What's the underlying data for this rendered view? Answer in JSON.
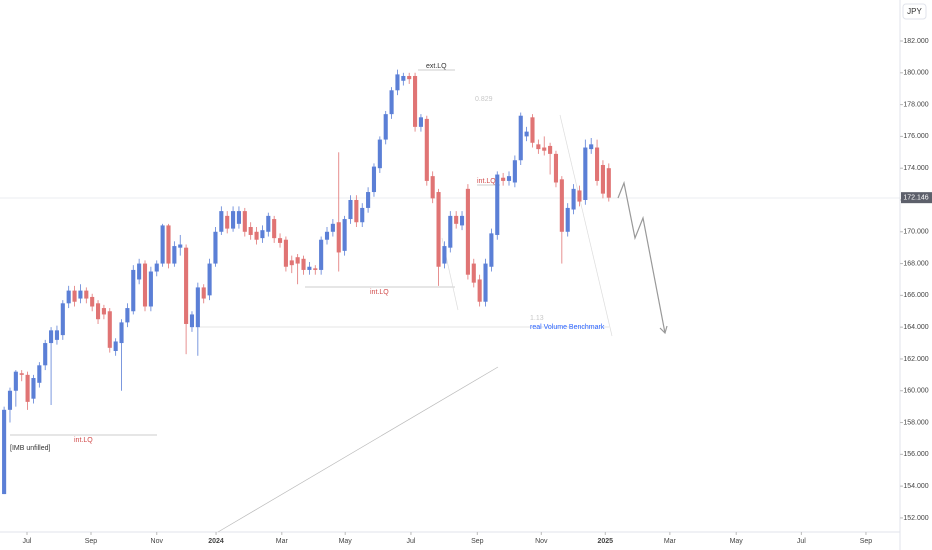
{
  "chart_data": {
    "type": "candlestick",
    "currency": "JPY",
    "up_color": "#5b7fd6",
    "down_color": "#e07474",
    "x": [
      0,
      1,
      2,
      3,
      4,
      5,
      6,
      7,
      8,
      9,
      10,
      11,
      12,
      13,
      14,
      15,
      16,
      17,
      18,
      19,
      20,
      21,
      22,
      23,
      24,
      25,
      26,
      27,
      28,
      29,
      30,
      31,
      32,
      33,
      34,
      35,
      36,
      37,
      38,
      39,
      40,
      41,
      42,
      43,
      44,
      45,
      46,
      47,
      48,
      49,
      50,
      51,
      52,
      53,
      54,
      55,
      56,
      57,
      58,
      59,
      60,
      61,
      62,
      63,
      64,
      65,
      66,
      67,
      68,
      69,
      70,
      71,
      72,
      73,
      74,
      75,
      76,
      77,
      78,
      79,
      80,
      81,
      82,
      83,
      84,
      85,
      86,
      87,
      88,
      89,
      90,
      91,
      92,
      93,
      94,
      95,
      96,
      97,
      98,
      99,
      100,
      101,
      102,
      103
    ],
    "open": [
      153.5,
      158.8,
      160,
      161.1,
      161,
      159.5,
      160.5,
      161.6,
      163,
      163.2,
      163.5,
      165.5,
      166.3,
      165.8,
      166.3,
      165.9,
      165.5,
      165.2,
      165,
      162.5,
      163,
      164.3,
      165,
      167,
      168,
      165.3,
      167.5,
      168,
      170.4,
      168,
      169,
      169,
      164,
      164,
      166.5,
      166,
      168,
      170,
      171,
      170.2,
      170.5,
      171.3,
      170.3,
      170,
      169.6,
      170,
      170.8,
      169.6,
      169.5,
      168.2,
      168.4,
      168.3,
      167.6,
      167.7,
      167.6,
      169.5,
      170,
      170.6,
      168.8,
      170.8,
      172,
      170.6,
      171.5,
      172.5,
      174,
      175.8,
      177.4,
      178.9,
      179.5,
      179.8,
      179.8,
      176.6,
      177.1,
      173.5,
      172.5,
      168,
      169,
      171,
      170.4,
      172.7,
      168,
      167,
      165.6,
      167.8,
      169.8,
      173.4,
      173.2,
      173.1,
      174.5,
      176,
      177.2,
      175.5,
      175.3,
      175.4,
      174.9,
      173.3,
      170,
      171.4,
      172.6,
      172,
      175.2,
      175.3,
      174.2,
      174
    ],
    "high": [
      159,
      160.2,
      161.3,
      161.3,
      161.2,
      161,
      161.8,
      163.2,
      164,
      164.1,
      165.7,
      166.6,
      166.6,
      166.7,
      166.5,
      166.1,
      165.7,
      165.4,
      165.2,
      163.3,
      164.5,
      165.5,
      167.9,
      168.3,
      168.2,
      167.8,
      168.2,
      170.5,
      170.5,
      169.4,
      169.8,
      169.2,
      165,
      166.8,
      166.7,
      168.3,
      170.3,
      171.6,
      171.3,
      171.6,
      171.6,
      171.5,
      170.6,
      170.3,
      170.4,
      171.2,
      171,
      169.9,
      169.7,
      168.5,
      168.6,
      168.5,
      168.1,
      167.9,
      169.7,
      170.3,
      170.8,
      175,
      171,
      172.3,
      172.3,
      171.8,
      172.8,
      174.3,
      176,
      177.6,
      179.1,
      180.2,
      180,
      180,
      180,
      177.4,
      177.3,
      173.8,
      172.7,
      169.4,
      171.3,
      171.3,
      171.3,
      173,
      168.3,
      167.3,
      168.3,
      170.2,
      173.8,
      173.7,
      173.8,
      174.8,
      177.5,
      176.6,
      177.4,
      175.8,
      176,
      175.6,
      175.1,
      173.5,
      171.8,
      173,
      172.9,
      175.8,
      175.9,
      175.8,
      174.5,
      174.3
    ],
    "low": [
      153.5,
      158,
      159,
      160.6,
      158.8,
      159.2,
      160.2,
      161.3,
      159.1,
      162.9,
      163.2,
      165.2,
      165.3,
      165.5,
      165.5,
      165,
      164.2,
      164.5,
      162.4,
      162.2,
      160,
      164,
      164.8,
      166.7,
      165,
      165,
      167.2,
      167.8,
      167.7,
      167.8,
      168.5,
      162.3,
      163.7,
      162.2,
      165.5,
      165.7,
      167.8,
      169.8,
      169.9,
      170,
      170.2,
      169.7,
      169.5,
      169.2,
      169.3,
      169.7,
      169.3,
      169,
      167.5,
      167.4,
      166.7,
      167.3,
      167.3,
      167.3,
      167.3,
      169.2,
      169.7,
      167.5,
      168.5,
      170.5,
      170.3,
      170.3,
      171.2,
      172.2,
      173.7,
      175.5,
      177.1,
      178.6,
      179.2,
      179.3,
      176.3,
      176.3,
      172.9,
      171.8,
      166.6,
      167.7,
      168.7,
      170.2,
      170.1,
      167,
      166.5,
      165.3,
      165.3,
      167.5,
      169.5,
      172.9,
      172.9,
      172.8,
      174.2,
      175.7,
      175.3,
      174.9,
      174.8,
      173.6,
      172.8,
      168,
      169.7,
      171.1,
      171.6,
      171.7,
      174.9,
      172.9,
      172.1,
      171.9
    ],
    "close": [
      158.8,
      160,
      161.2,
      161,
      159.3,
      160.8,
      161.6,
      163,
      163.8,
      163.8,
      165.5,
      166.3,
      165.6,
      166.3,
      165.8,
      165.3,
      164.5,
      164.8,
      162.7,
      163.1,
      164.3,
      165.2,
      167.6,
      168,
      165.3,
      167.5,
      168,
      170.4,
      168,
      169.1,
      169.2,
      164.2,
      164.8,
      166.5,
      165.8,
      168,
      170,
      171.3,
      170.2,
      171.3,
      171.3,
      170,
      169.8,
      169.5,
      170.1,
      171,
      169.6,
      169.3,
      167.8,
      167.9,
      168,
      167.6,
      167.8,
      167.6,
      169.5,
      170,
      170.5,
      168.7,
      170.8,
      172,
      170.6,
      171.5,
      172.5,
      174.1,
      175.8,
      177.4,
      178.9,
      179.9,
      179.8,
      179.6,
      176.6,
      177.2,
      173.2,
      172.1,
      167.8,
      169.1,
      171,
      170.5,
      171,
      167.3,
      166.8,
      165.6,
      168,
      169.9,
      173.6,
      173.2,
      173.5,
      174.5,
      177.3,
      176.3,
      175.6,
      175.2,
      175.1,
      174.9,
      173.1,
      170,
      171.5,
      172.7,
      171.9,
      175.3,
      175.5,
      173.2,
      172.4,
      172.146
    ],
    "xlim": [
      -0.7,
      152.6
    ],
    "ylim": [
      151.24,
      184.58
    ],
    "xticks": [
      {
        "value": 3.9,
        "label": "Jul"
      },
      {
        "value": 14.8,
        "label": "Sep"
      },
      {
        "value": 26.0,
        "label": "Nov"
      },
      {
        "value": 36.1,
        "label": "2024"
      },
      {
        "value": 47.3,
        "label": "Mar"
      },
      {
        "value": 58.1,
        "label": "May"
      },
      {
        "value": 69.3,
        "label": "Jul"
      },
      {
        "value": 80.6,
        "label": "Sep"
      },
      {
        "value": 91.5,
        "label": "Nov"
      },
      {
        "value": 102.4,
        "label": "2025"
      },
      {
        "value": 113.4,
        "label": "Mar"
      },
      {
        "value": 124.7,
        "label": "May"
      },
      {
        "value": 135.8,
        "label": "Jul"
      },
      {
        "value": 146.8,
        "label": "Sep"
      }
    ],
    "yticks": [
      {
        "value": 152,
        "label": "152.000"
      },
      {
        "value": 154,
        "label": "154.000"
      },
      {
        "value": 156,
        "label": "156.000"
      },
      {
        "value": 158,
        "label": "158.000"
      },
      {
        "value": 160,
        "label": "160.000"
      },
      {
        "value": 162,
        "label": "162.000"
      },
      {
        "value": 164,
        "label": "164.000"
      },
      {
        "value": 166,
        "label": "166.000"
      },
      {
        "value": 168,
        "label": "168.000"
      },
      {
        "value": 170,
        "label": "170.000"
      },
      {
        "value": 172,
        "label": "172.000"
      },
      {
        "value": 174,
        "label": "174.000"
      },
      {
        "value": 176,
        "label": "176.000"
      },
      {
        "value": 178,
        "label": "178.000"
      },
      {
        "value": 180,
        "label": "180.000"
      },
      {
        "value": 182,
        "label": "182.000"
      }
    ],
    "annotations": [
      "ext.LQ",
      "0.829",
      "int.LQ",
      "int.LQ",
      "int.LQ",
      "[IMB unfilled]",
      "real Volume Benchmark",
      "1.13"
    ]
  }
}
